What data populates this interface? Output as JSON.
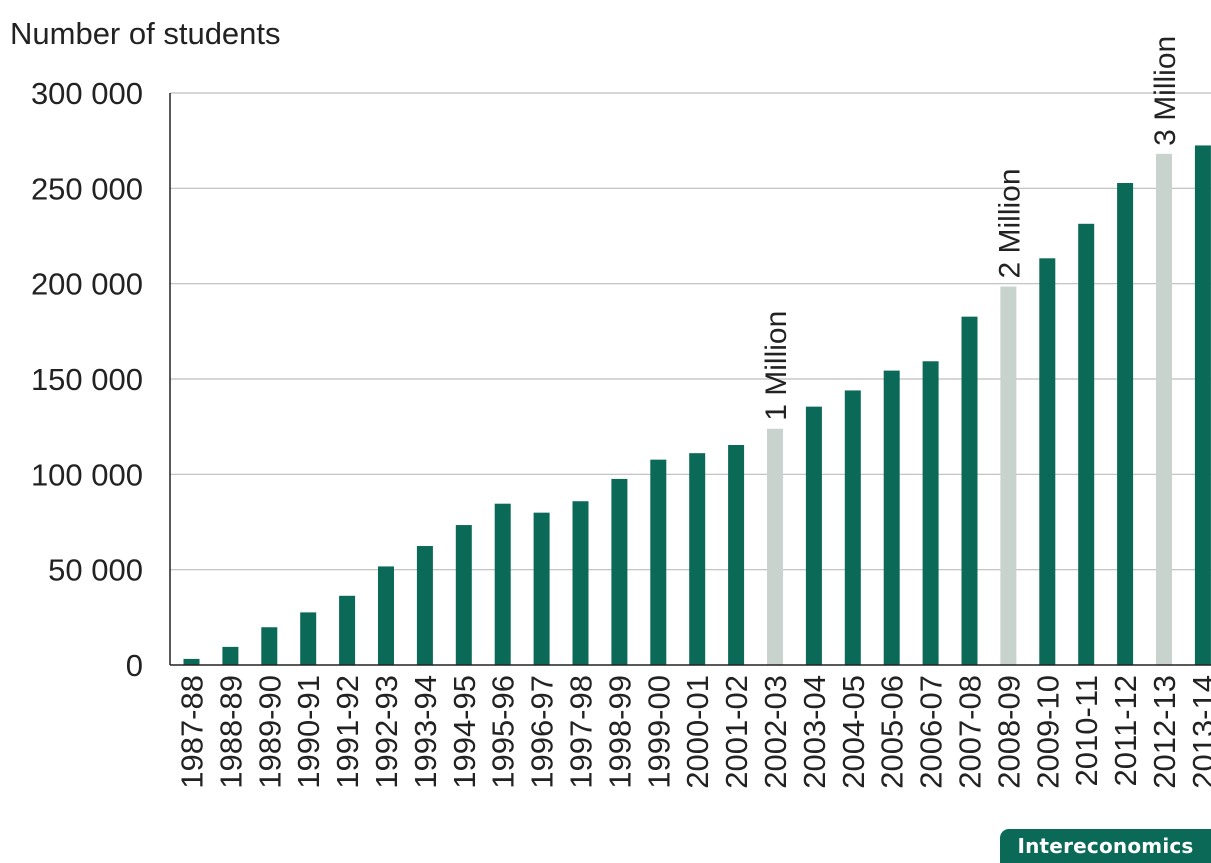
{
  "badge": {
    "text": "Intereconomics"
  },
  "colors": {
    "primary_bar": "#0b6a57",
    "milestone_bar": "#c9d3ce",
    "grid": "#bdbdbd",
    "axis": "#222222"
  },
  "chart_data": {
    "type": "bar",
    "title": "",
    "ylabel": "Number of students",
    "xlabel": "",
    "ylim": [
      0,
      300000
    ],
    "yticks": [
      0,
      50000,
      100000,
      150000,
      200000,
      250000,
      300000
    ],
    "ytick_labels": [
      "0",
      "50 000",
      "100 000",
      "150 000",
      "200 000",
      "250 000",
      "300 000"
    ],
    "grid": "horizontal",
    "categories": [
      "1987-88",
      "1988-89",
      "1989-90",
      "1990-91",
      "1991-92",
      "1992-93",
      "1993-94",
      "1994-95",
      "1995-96",
      "1996-97",
      "1997-98",
      "1998-99",
      "1999-00",
      "2000-01",
      "2001-02",
      "2002-03",
      "2003-04",
      "2004-05",
      "2005-06",
      "2006-07",
      "2007-08",
      "2008-09",
      "2009-10",
      "2010-11",
      "2011-12",
      "2012-13",
      "2013-14"
    ],
    "values": [
      3200,
      9500,
      19800,
      27600,
      36300,
      51700,
      62400,
      73400,
      84600,
      79900,
      85900,
      97600,
      107700,
      111100,
      115400,
      123900,
      135500,
      144000,
      154400,
      159300,
      182700,
      198500,
      213300,
      231400,
      252800,
      268100,
      272500
    ],
    "highlighted": [
      "2002-03",
      "2008-09",
      "2012-13"
    ],
    "annotations": [
      {
        "category": "2002-03",
        "text": "1 Million"
      },
      {
        "category": "2008-09",
        "text": "2 Million"
      },
      {
        "category": "2012-13",
        "text": "3 Million"
      }
    ]
  }
}
